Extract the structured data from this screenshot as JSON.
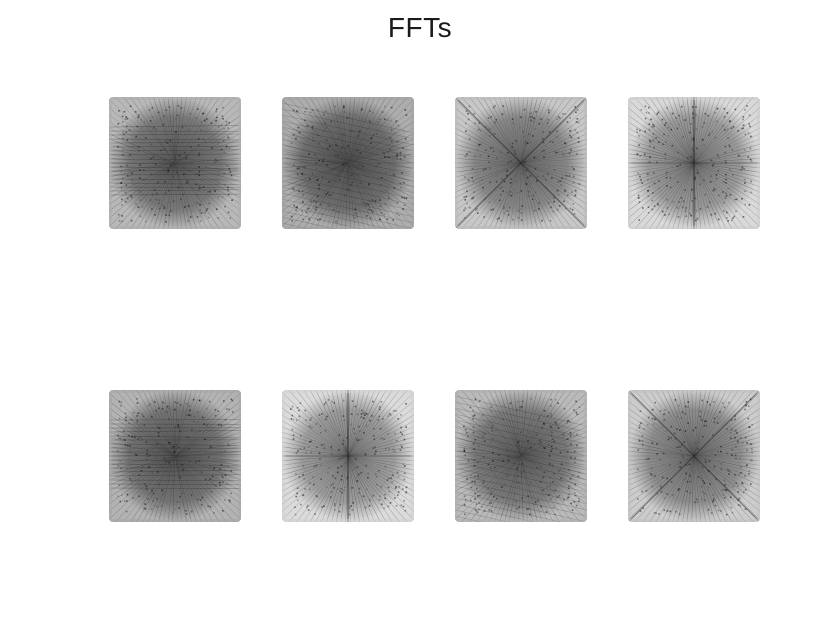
{
  "figure": {
    "title": "FFTs"
  },
  "panels": [
    {
      "tone": 0.42,
      "pattern": "horizontal"
    },
    {
      "tone": 0.38,
      "pattern": "diagonal"
    },
    {
      "tone": 0.48,
      "pattern": "cross-x"
    },
    {
      "tone": 0.55,
      "pattern": "center-cross"
    },
    {
      "tone": 0.4,
      "pattern": "horizontal"
    },
    {
      "tone": 0.56,
      "pattern": "center-cross"
    },
    {
      "tone": 0.43,
      "pattern": "diagonal"
    },
    {
      "tone": 0.5,
      "pattern": "cross-x"
    }
  ],
  "colors": {
    "background": "#ffffff",
    "panel_light": "#cfcfcf",
    "panel_dark": "#3a3a3a",
    "title": "#1a1a1a"
  }
}
